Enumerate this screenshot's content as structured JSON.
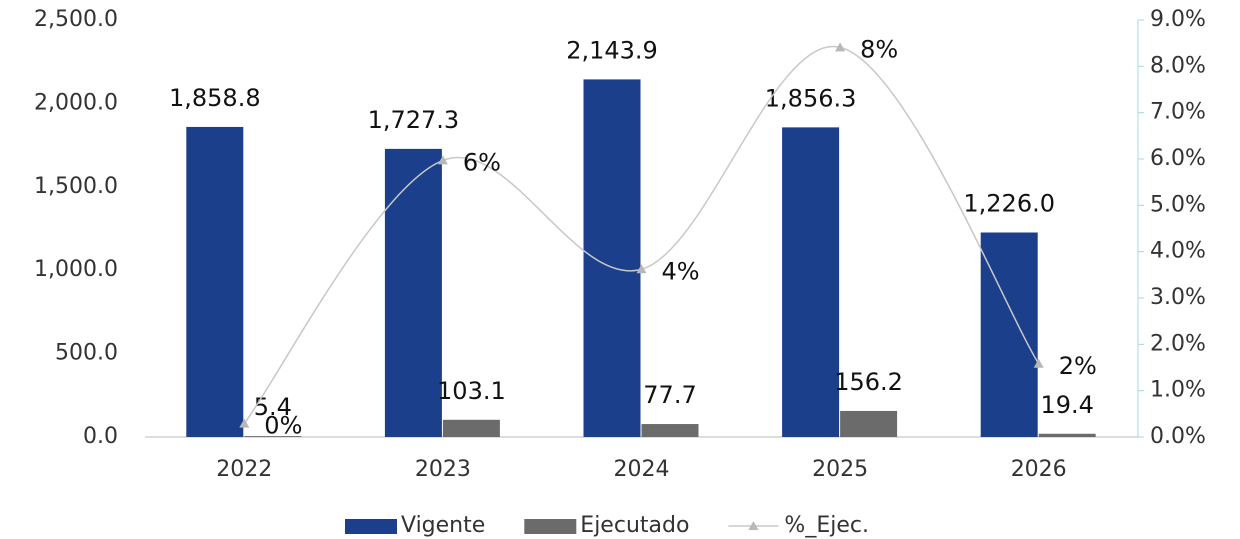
{
  "chart_data": {
    "type": "bar-line",
    "categories": [
      "2022",
      "2023",
      "2024",
      "2025",
      "2026"
    ],
    "series": [
      {
        "name": "Vigente",
        "color": "#1b3f8b",
        "values": [
          1858.8,
          1727.3,
          2143.9,
          1856.3,
          1226.0
        ],
        "value_labels": [
          "1,858.8",
          "1,727.3",
          "2,143.9",
          "1,856.3",
          "1,226.0"
        ]
      },
      {
        "name": "Ejecutado",
        "color": "#6b6b6b",
        "values": [
          5.4,
          103.1,
          77.7,
          156.2,
          19.4
        ]
      },
      {
        "name": "%_Ejec.",
        "color": "#c8c8c8",
        "axis": "y2",
        "values": [
          0.29,
          5.97,
          3.62,
          8.41,
          1.58
        ],
        "value_labels": [
          "0%",
          "6%",
          "4%",
          "8%",
          "2%"
        ]
      }
    ],
    "ylim": [
      0,
      2500
    ],
    "yticks": [
      {
        "value": 0,
        "label": "0.0"
      },
      {
        "value": 500,
        "label": "500.0"
      },
      {
        "value": 1000,
        "label": "1,000.0"
      },
      {
        "value": 1500,
        "label": "1,500.0"
      },
      {
        "value": 2000,
        "label": "2,000.0"
      },
      {
        "value": 2500,
        "label": "2,500.0"
      }
    ],
    "y2lim": [
      0,
      9
    ],
    "y2ticks": [
      {
        "value": 0,
        "label": "0.0%"
      },
      {
        "value": 1,
        "label": "1.0%"
      },
      {
        "value": 2,
        "label": "2.0%"
      },
      {
        "value": 3,
        "label": "3.0%"
      },
      {
        "value": 4,
        "label": "4.0%"
      },
      {
        "value": 5,
        "label": "5.0%"
      },
      {
        "value": 6,
        "label": "6.0%"
      },
      {
        "value": 7,
        "label": "7.0%"
      },
      {
        "value": 8,
        "label": "8.0%"
      },
      {
        "value": 9,
        "label": "9.0%"
      }
    ],
    "legend": "bottom"
  }
}
